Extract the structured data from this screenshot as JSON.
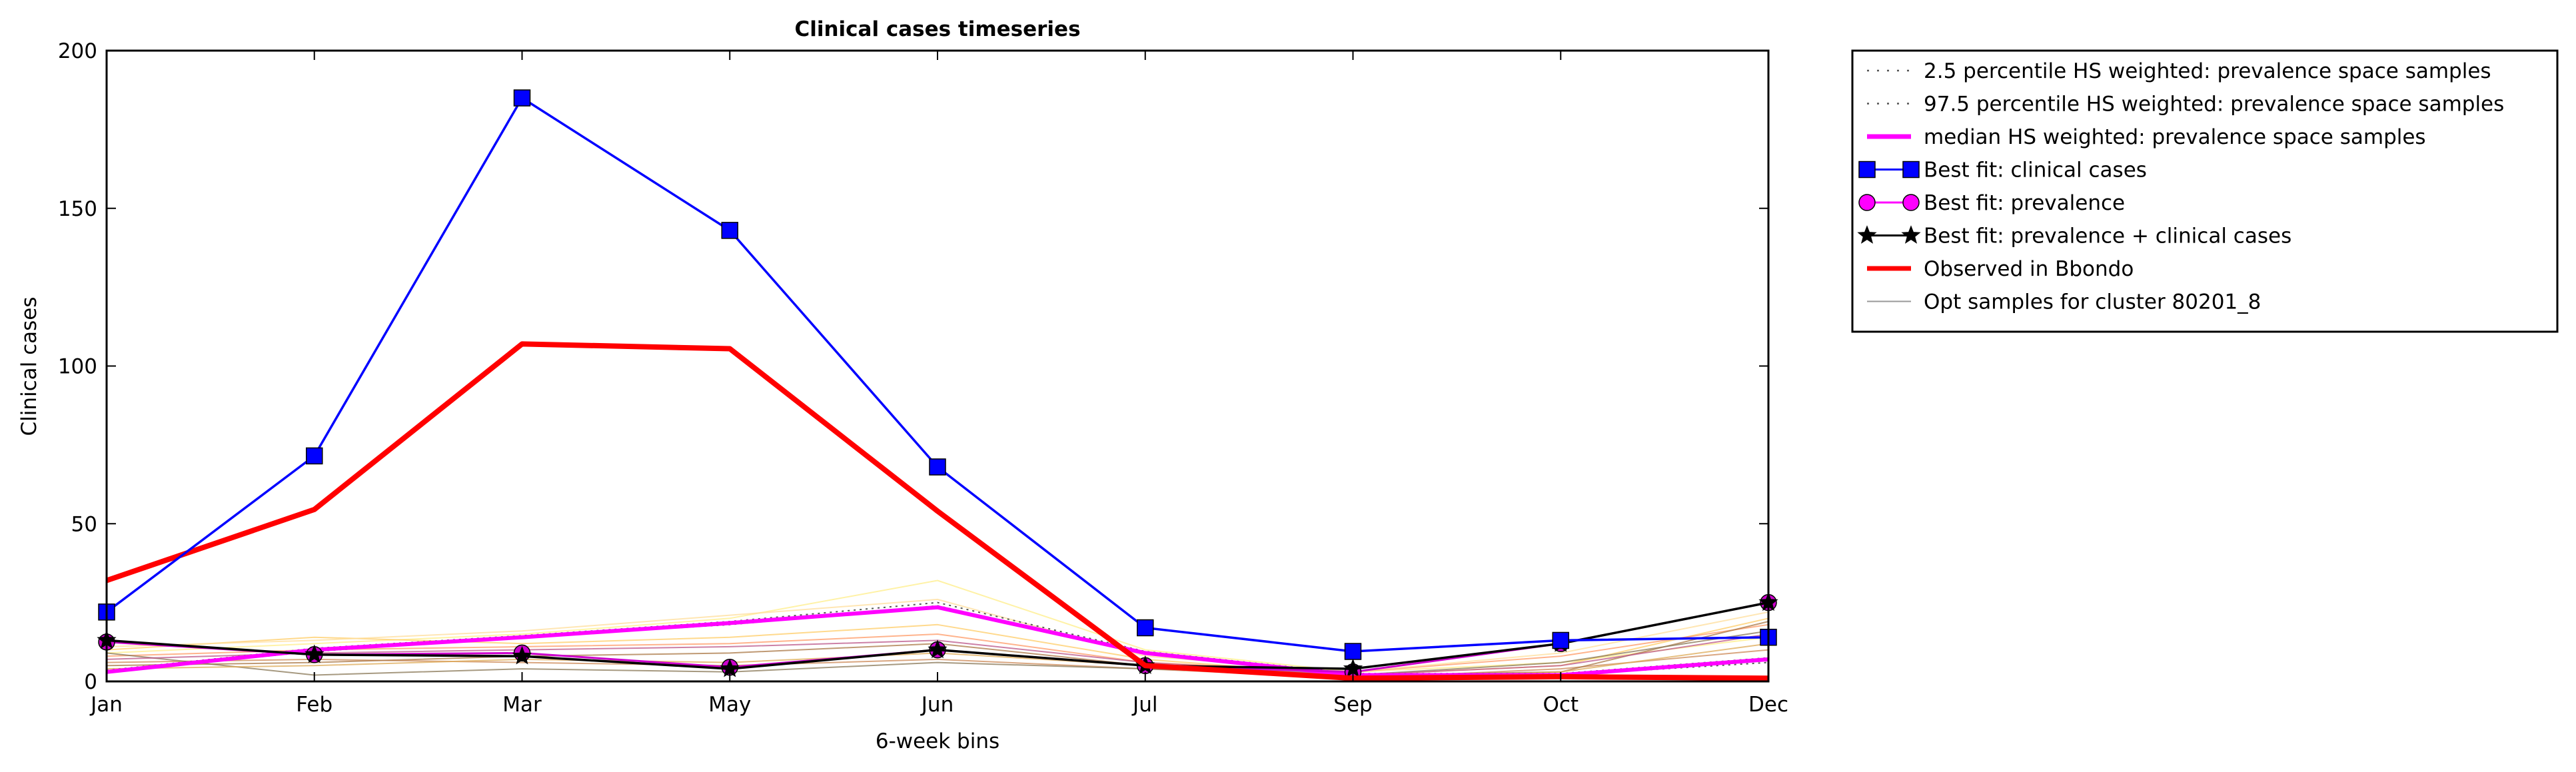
{
  "chart_data": {
    "type": "line",
    "title": "Clinical cases timeseries",
    "xlabel": "6-week bins",
    "ylabel": "Clinical cases",
    "categories": [
      "Jan",
      "Feb",
      "Mar",
      "May",
      "Jun",
      "Jul",
      "Sep",
      "Oct",
      "Dec"
    ],
    "ylim": [
      0,
      200
    ],
    "yticks": [
      0,
      50,
      100,
      150,
      200
    ],
    "grid": false,
    "legend_position": "outside-top-right",
    "legend": [
      {
        "label": "2.5 percentile HS weighted: prevalence space samples",
        "color": "#555555",
        "style": "dotted"
      },
      {
        "label": "97.5 percentile HS weighted: prevalence space samples",
        "color": "#555555",
        "style": "dotted"
      },
      {
        "label": "median HS weighted: prevalence space samples",
        "color": "#ff00ff",
        "style": "solid-thick"
      },
      {
        "label": "Best fit: clinical cases",
        "color": "#0000ff",
        "style": "line-square"
      },
      {
        "label": "Best fit: prevalence",
        "color": "#ff00ff",
        "style": "line-circle"
      },
      {
        "label": "Best fit: prevalence + clinical cases",
        "color": "#000000",
        "style": "line-star"
      },
      {
        "label": "Observed in Bbondo",
        "color": "#ff0000",
        "style": "solid-thick"
      },
      {
        "label": "Opt samples for cluster 80201_8",
        "color": "#999999",
        "style": "solid-thin"
      }
    ],
    "series": [
      {
        "name": "Best fit: clinical cases",
        "color": "#0000ff",
        "marker": "square",
        "values": [
          22,
          71.5,
          185,
          143,
          68,
          17,
          9.5,
          13,
          14
        ]
      },
      {
        "name": "Observed in Bbondo",
        "color": "#ff0000",
        "marker": "none",
        "values": [
          32,
          54.5,
          107,
          105.5,
          54,
          5,
          1,
          1.5,
          1
        ]
      },
      {
        "name": "median HS weighted: prevalence space samples",
        "color": "#ff00ff",
        "marker": "none",
        "values": [
          3,
          10,
          14,
          18.5,
          23.5,
          9,
          2,
          2,
          7
        ]
      },
      {
        "name": "Best fit: prevalence",
        "color": "#cc00cc",
        "marker": "circle",
        "values": [
          12.5,
          8.5,
          9,
          4.5,
          10,
          5,
          3,
          12,
          25
        ]
      },
      {
        "name": "Best fit: prevalence + clinical cases",
        "color": "#000000",
        "marker": "star",
        "values": [
          13,
          8.5,
          8,
          4,
          10,
          5,
          4,
          12,
          25
        ]
      },
      {
        "name": "2.5 percentile HS weighted: prevalence space samples",
        "color": "#555555",
        "marker": "none",
        "values": [
          3,
          9.5,
          14,
          18,
          24,
          9,
          2,
          2,
          6
        ]
      },
      {
        "name": "97.5 percentile HS weighted: prevalence space samples",
        "color": "#555555",
        "marker": "none",
        "values": [
          3.5,
          10.5,
          14.5,
          19,
          25,
          9.5,
          2.5,
          2.5,
          7.5
        ]
      },
      {
        "name": "Opt samples for cluster 80201_8",
        "color": "#ffee88",
        "marker": "none",
        "values": [
          9,
          12,
          15,
          20,
          32,
          10,
          3,
          6,
          14
        ]
      },
      {
        "name": "Opt samples for cluster 80201_8",
        "color": "#ffcc66",
        "marker": "none",
        "values": [
          10,
          14,
          12,
          14,
          18,
          7,
          2,
          5,
          20
        ]
      },
      {
        "name": "Opt samples for cluster 80201_8",
        "color": "#ff9966",
        "marker": "none",
        "values": [
          8,
          10,
          11,
          12,
          15,
          6,
          3,
          8,
          18
        ]
      },
      {
        "name": "Opt samples for cluster 80201_8",
        "color": "#cc8855",
        "marker": "none",
        "values": [
          6,
          7,
          6,
          5,
          7,
          4,
          1,
          4,
          10
        ]
      },
      {
        "name": "Opt samples for cluster 80201_8",
        "color": "#aa7744",
        "marker": "none",
        "values": [
          5,
          6,
          8,
          9,
          12,
          5,
          2,
          3,
          19
        ]
      },
      {
        "name": "Opt samples for cluster 80201_8",
        "color": "#887755",
        "marker": "none",
        "values": [
          9,
          2,
          4,
          3,
          6,
          4,
          2,
          6,
          16
        ]
      },
      {
        "name": "Opt samples for cluster 80201_8",
        "color": "#ddaa55",
        "marker": "none",
        "values": [
          4,
          5,
          7,
          6,
          9,
          5,
          1,
          3,
          12
        ]
      },
      {
        "name": "Opt samples for cluster 80201_8",
        "color": "#bb5588",
        "marker": "none",
        "values": [
          7,
          9,
          10,
          11,
          13,
          6,
          2,
          5,
          15
        ]
      },
      {
        "name": "Opt samples for cluster 80201_8",
        "color": "#ffdd99",
        "marker": "none",
        "values": [
          11,
          13,
          16,
          21,
          26,
          8,
          3,
          9,
          22
        ]
      }
    ]
  }
}
